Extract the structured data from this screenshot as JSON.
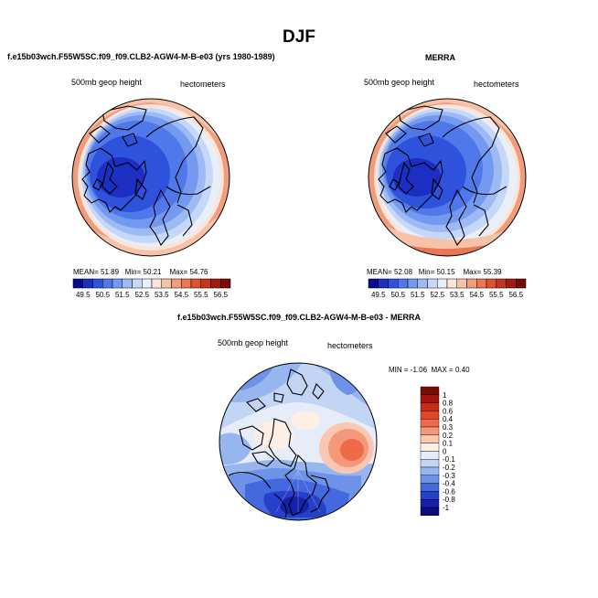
{
  "header": {
    "season": "DJF"
  },
  "panels": {
    "model": {
      "title": "f.e15b03wch.F55W5SC.f09_f09.CLB2-AGW4-M-B-e03 (yrs 1980-1989)",
      "variable": "500mb geop height",
      "units": "hectometers",
      "stats": {
        "mean_label": "MEAN=",
        "mean": "51.89",
        "min_label": "Min=",
        "min": "50.21",
        "max_label": "Max=",
        "max": "54.76"
      }
    },
    "obs": {
      "title": "MERRA",
      "variable": "500mb geop height",
      "units": "hectometers",
      "stats": {
        "mean_label": "MEAN=",
        "mean": "52.08",
        "min_label": "Min=",
        "min": "50.15",
        "max_label": "Max=",
        "max": "55.39"
      }
    },
    "diff": {
      "title": "f.e15b03wch.F55W5SC.f09_f09.CLB2-AGW4-M-B-e03 - MERRA",
      "variable": "500mb geop height",
      "units": "hectometers",
      "minmax": {
        "min_label": "MIN =",
        "min": "-1.06",
        "max_label": "MAX =",
        "max": "0.40"
      }
    }
  },
  "colorbars": {
    "abs": {
      "labels": [
        "49.5",
        "50.5",
        "51.5",
        "52.5",
        "53.5",
        "54.5",
        "55.5",
        "56.5"
      ],
      "colors": [
        "#0a0a8c",
        "#1c2fc2",
        "#2f52dc",
        "#4f78ea",
        "#7399f0",
        "#9dbaf4",
        "#c5d8f7",
        "#e9eff9",
        "#fbe5db",
        "#f6c2a8",
        "#f19d7c",
        "#ea7656",
        "#de5233",
        "#c5341c",
        "#a01c10",
        "#780a08"
      ]
    },
    "diff": {
      "labels": [
        "1",
        "0.8",
        "0.6",
        "0.4",
        "0.3",
        "0.2",
        "0.1",
        "0",
        "-0.1",
        "-0.2",
        "-0.3",
        "-0.4",
        "-0.6",
        "-0.8",
        "-1"
      ],
      "colors": [
        "#7a0a08",
        "#a3150e",
        "#c62a18",
        "#e0462a",
        "#ee6a48",
        "#f5987a",
        "#fbc7b3",
        "#fdeee6",
        "#e6edf9",
        "#c2d5f5",
        "#97b6ef",
        "#6d92e8",
        "#4468de",
        "#2740c9",
        "#1620a8",
        "#0c0c80"
      ]
    }
  },
  "colors": {
    "coast": "#000000",
    "border": "#000000",
    "text": "#000000"
  }
}
